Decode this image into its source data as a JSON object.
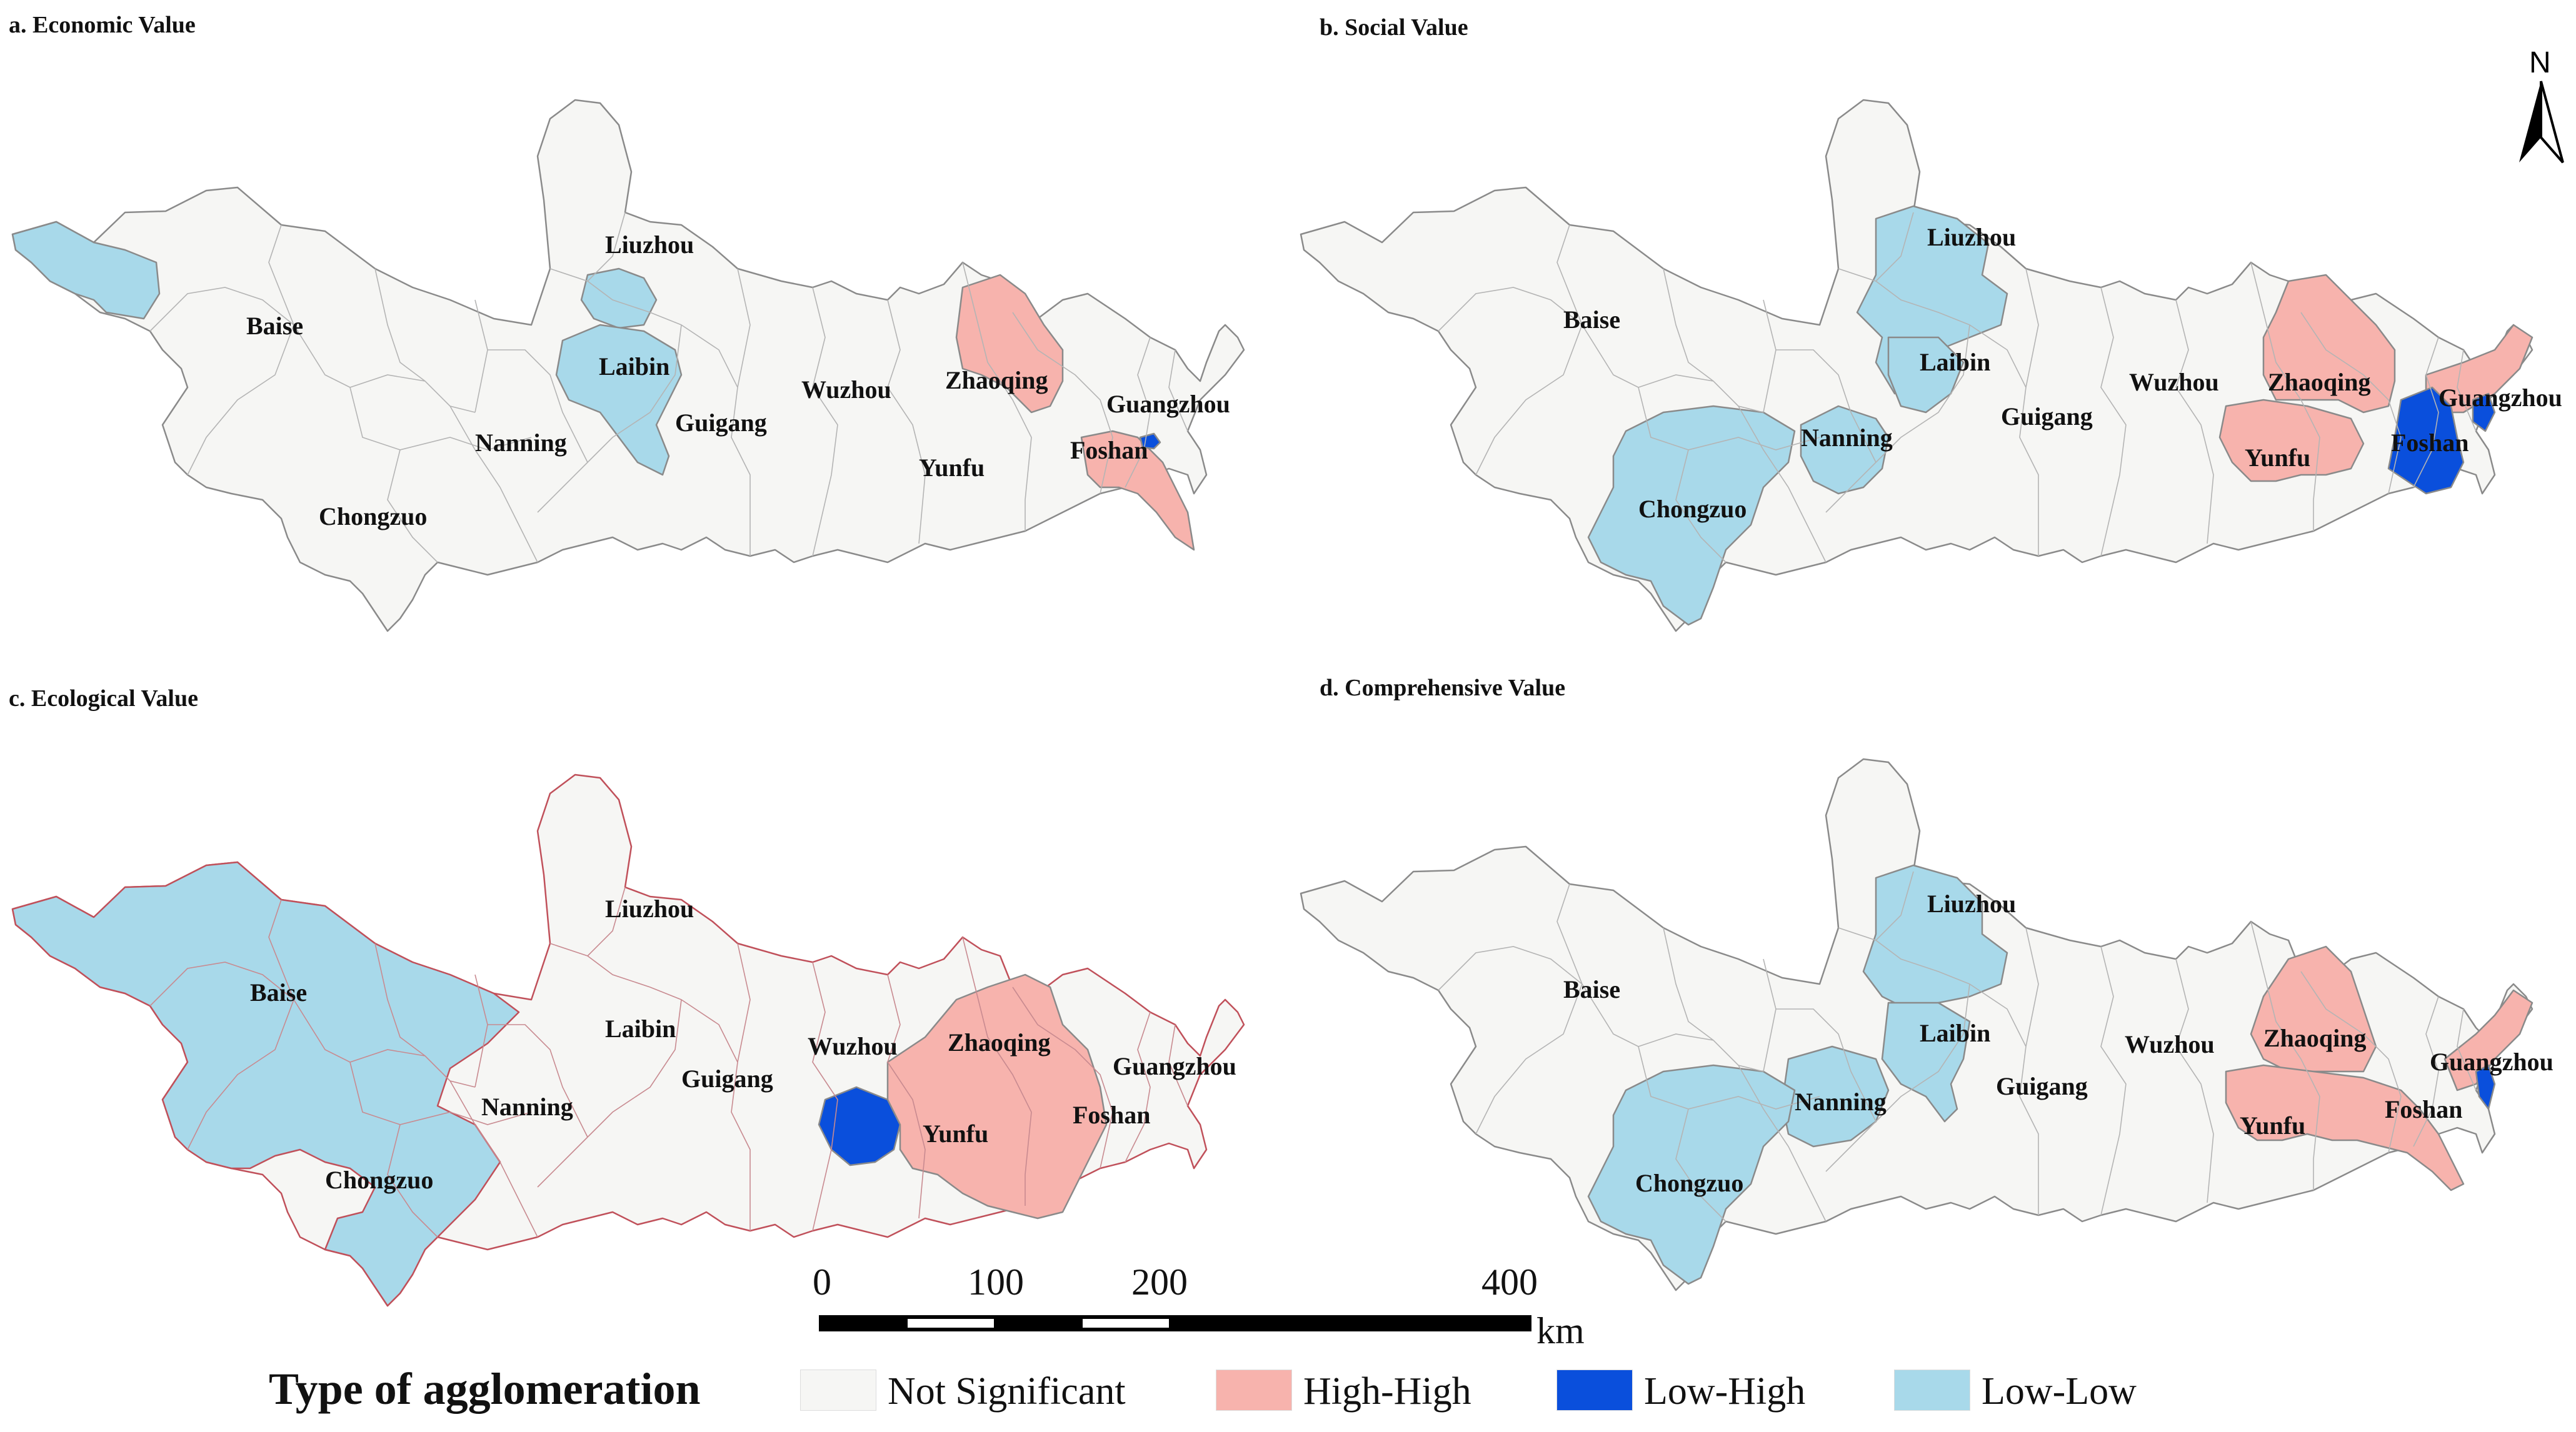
{
  "panels": {
    "a": {
      "title": "a. Economic Value"
    },
    "b": {
      "title": "b. Social Value"
    },
    "c": {
      "title": "c. Ecological Value"
    },
    "d": {
      "title": "d. Comprehensive Value"
    }
  },
  "cities": {
    "baise": "Baise",
    "chongzuo": "Chongzuo",
    "nanning": "Nanning",
    "liuzhou": "Liuzhou",
    "laibin": "Laibin",
    "guigang": "Guigang",
    "wuzhou": "Wuzhou",
    "zhaoqing": "Zhaoqing",
    "yunfu": "Yunfu",
    "guangzhou": "Guangzhou",
    "foshan": "Foshan"
  },
  "north_arrow": {
    "label": "N"
  },
  "scale_bar": {
    "ticks": [
      "0",
      "100",
      "200",
      "400"
    ],
    "unit": "km"
  },
  "legend": {
    "title": "Type of agglomeration",
    "items": [
      {
        "label": "Not Significant",
        "color": "#f6f6f4"
      },
      {
        "label": "High-High",
        "color": "#f7b3ad"
      },
      {
        "label": "Low-High",
        "color": "#0a4fdc"
      },
      {
        "label": "Low-Low",
        "color": "#a8d9ea"
      }
    ]
  },
  "colors": {
    "not_significant": "#f6f6f4",
    "high_high": "#f7b3ad",
    "low_high": "#0a4fdc",
    "low_low": "#a8d9ea",
    "ecological_border": "#c0505a"
  }
}
